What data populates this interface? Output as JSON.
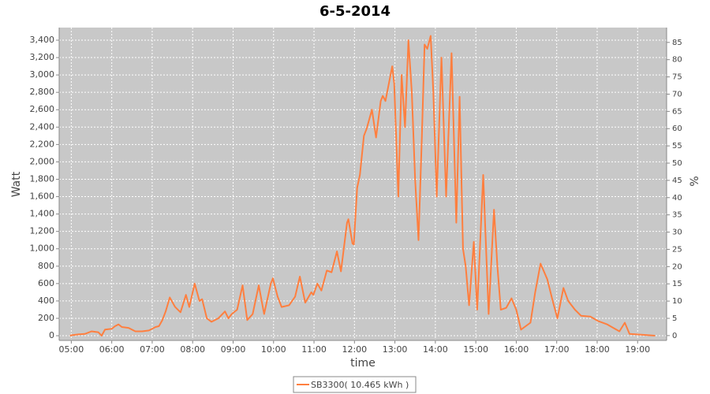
{
  "chart_data": {
    "type": "line",
    "title": "6-5-2014",
    "x_label": "time",
    "y_label": "Watt",
    "y2_label": "%",
    "xlim": [
      "04:42",
      "19:43"
    ],
    "xticks": [
      "05:00",
      "06:00",
      "07:00",
      "08:00",
      "09:00",
      "10:00",
      "11:00",
      "12:00",
      "13:00",
      "14:00",
      "15:00",
      "16:00",
      "17:00",
      "18:00",
      "19:00"
    ],
    "ylim": [
      -54,
      3545
    ],
    "yticks": [
      0,
      200,
      400,
      600,
      800,
      {
        "value": 1000,
        "label": "1,000"
      },
      {
        "value": 1200,
        "label": "1,200"
      },
      {
        "value": 1400,
        "label": "1,400"
      },
      {
        "value": 1600,
        "label": "1,600"
      },
      {
        "value": 1800,
        "label": "1,800"
      },
      {
        "value": 2000,
        "label": "2,000"
      },
      {
        "value": 2200,
        "label": "2,200"
      },
      {
        "value": 2400,
        "label": "2,400"
      },
      {
        "value": 2600,
        "label": "2,600"
      },
      {
        "value": 2800,
        "label": "2,800"
      },
      {
        "value": 3000,
        "label": "3,000"
      },
      {
        "value": 3200,
        "label": "3,200"
      },
      {
        "value": 3400,
        "label": "3,400"
      }
    ],
    "y2lim": [
      -1.4,
      89.3
    ],
    "y2ticks": [
      0,
      5,
      10,
      15,
      20,
      25,
      30,
      35,
      40,
      45,
      50,
      55,
      60,
      65,
      70,
      75,
      80,
      85
    ],
    "grid": true,
    "legend": "bottom",
    "x": [
      "04:58",
      "05:00",
      "05:10",
      "05:20",
      "05:30",
      "05:40",
      "05:45",
      "05:50",
      "06:00",
      "06:05",
      "06:10",
      "06:15",
      "06:25",
      "06:35",
      "06:45",
      "06:55",
      "07:05",
      "07:10",
      "07:15",
      "07:20",
      "07:26",
      "07:34",
      "07:42",
      "07:50",
      "07:55",
      "08:03",
      "08:10",
      "08:14",
      "08:21",
      "08:28",
      "08:38",
      "08:48",
      "08:53",
      "08:58",
      "09:06",
      "09:14",
      "09:21",
      "09:29",
      "09:38",
      "09:46",
      "09:56",
      "09:59",
      "10:06",
      "10:12",
      "10:23",
      "10:32",
      "10:39",
      "10:47",
      "10:56",
      "10:59",
      "11:05",
      "11:11",
      "11:19",
      "11:26",
      "11:34",
      "11:40",
      "11:49",
      "11:51",
      "11:57",
      "11:59",
      "12:04",
      "12:08",
      "12:14",
      "12:18",
      "12:26",
      "12:32",
      "12:39",
      "12:42",
      "12:46",
      "12:56",
      "12:59",
      "13:05",
      "13:10",
      "13:15",
      "13:20",
      "13:25",
      "13:30",
      "13:35",
      "13:40",
      "13:44",
      "13:48",
      "13:53",
      "13:57",
      "14:02",
      "14:09",
      "14:16",
      "14:24",
      "14:31",
      "14:36",
      "14:41",
      "14:45",
      "14:50",
      "14:57",
      "15:02",
      "15:11",
      "15:19",
      "15:27",
      "15:32",
      "15:37",
      "15:45",
      "15:53",
      "16:00",
      "16:07",
      "16:21",
      "16:28",
      "16:36",
      "16:46",
      "16:54",
      "17:01",
      "17:10",
      "17:17",
      "17:27",
      "17:36",
      "17:50",
      "18:01",
      "18:15",
      "18:33",
      "18:41",
      "18:48",
      "19:08",
      "19:26"
    ],
    "series": [
      {
        "name": "SB3300( 10.465 kWh )",
        "color": "#ff7f3f",
        "values": [
          0,
          5,
          15,
          20,
          50,
          40,
          0,
          70,
          80,
          110,
          130,
          100,
          90,
          50,
          50,
          60,
          100,
          110,
          180,
          280,
          440,
          330,
          270,
          470,
          330,
          600,
          400,
          420,
          200,
          160,
          200,
          280,
          200,
          250,
          300,
          580,
          180,
          250,
          580,
          250,
          600,
          660,
          450,
          330,
          350,
          450,
          680,
          380,
          500,
          470,
          600,
          520,
          750,
          730,
          970,
          740,
          1300,
          1340,
          1060,
          1050,
          1700,
          1850,
          2300,
          2380,
          2600,
          2280,
          2700,
          2760,
          2700,
          3100,
          2900,
          1600,
          3000,
          2400,
          3400,
          2800,
          1800,
          1100,
          2300,
          3350,
          3300,
          3450,
          2800,
          1600,
          3200,
          1600,
          3250,
          1300,
          2750,
          1000,
          800,
          350,
          1080,
          300,
          1850,
          250,
          1450,
          800,
          300,
          320,
          430,
          300,
          70,
          150,
          500,
          830,
          650,
          400,
          200,
          550,
          400,
          300,
          230,
          220,
          170,
          130,
          50,
          150,
          20,
          10,
          0
        ]
      }
    ]
  }
}
